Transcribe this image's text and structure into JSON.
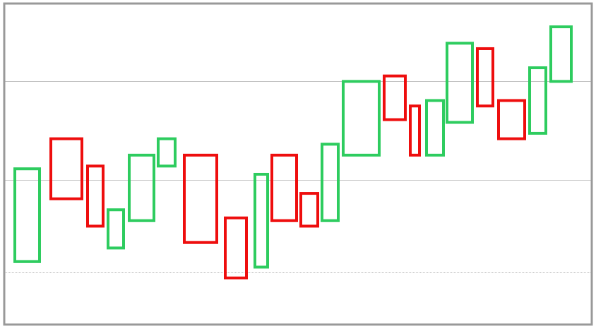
{
  "chart_data": {
    "type": "candlestick-box",
    "title": "",
    "xlabel": "",
    "ylabel": "",
    "ylim": [
      0,
      100
    ],
    "grid": {
      "horizontal": true,
      "vertical": false
    },
    "gridlines": [
      {
        "value": 10,
        "style": "dotted"
      },
      {
        "value": 44,
        "style": "solid"
      },
      {
        "value": 80,
        "style": "solid"
      }
    ],
    "colors": {
      "up": "#2ecc5f",
      "down": "#ee0e0e",
      "frame": "#999999",
      "grid": "#c2c2c2"
    },
    "boxes": [
      {
        "direction": "up",
        "low": 14.0,
        "high": 48.0
      },
      {
        "direction": "down",
        "low": 37.0,
        "high": 59.0
      },
      {
        "direction": "down",
        "low": 27.0,
        "high": 49.0
      },
      {
        "direction": "up",
        "low": 19.0,
        "high": 33.0
      },
      {
        "direction": "up",
        "low": 29.0,
        "high": 53.0
      },
      {
        "direction": "up",
        "low": 49.0,
        "high": 59.0
      },
      {
        "direction": "down",
        "low": 21.0,
        "high": 53.0
      },
      {
        "direction": "down",
        "low": 8.0,
        "high": 30.0
      },
      {
        "direction": "up",
        "low": 12.0,
        "high": 46.0
      },
      {
        "direction": "down",
        "low": 29.0,
        "high": 53.0
      },
      {
        "direction": "down",
        "low": 27.0,
        "high": 39.0
      },
      {
        "direction": "up",
        "low": 29.0,
        "high": 57.0
      },
      {
        "direction": "up",
        "low": 53.0,
        "high": 80.0
      },
      {
        "direction": "down",
        "low": 66.0,
        "high": 82.0
      },
      {
        "direction": "down",
        "low": 53.0,
        "high": 71.0
      },
      {
        "direction": "up",
        "low": 53.0,
        "high": 73.0
      },
      {
        "direction": "up",
        "low": 65.0,
        "high": 94.0
      },
      {
        "direction": "down",
        "low": 71.0,
        "high": 92.0
      },
      {
        "direction": "down",
        "low": 59.0,
        "high": 73.0
      },
      {
        "direction": "up",
        "low": 61.0,
        "high": 85.0
      },
      {
        "direction": "up",
        "low": 80.0,
        "high": 100.0
      }
    ]
  }
}
